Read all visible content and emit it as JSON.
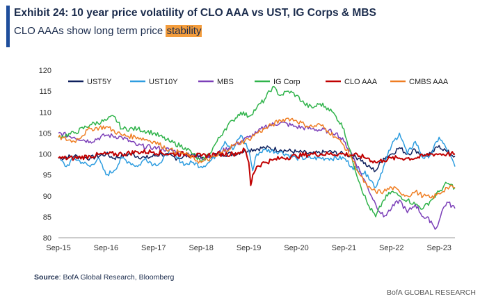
{
  "header": {
    "title": "Exhibit 24: 10 year price volatility of CLO AAA vs UST, IG Corps & MBS",
    "subtitle_prefix": "CLO AAAs show long term price ",
    "subtitle_highlight": "stability"
  },
  "footer": {
    "source_label": "Source",
    "source_text": ": BofA Global Research, Bloomberg",
    "brand": "BofA GLOBAL RESEARCH"
  },
  "colors": {
    "accent": "#1f4e9c",
    "highlight": "#f39c3c",
    "UST5Y": "#0d1f5c",
    "UST10Y": "#2e9de0",
    "MBS": "#7b3fb8",
    "IG Corp": "#2fb34a",
    "CLO AAA": "#c00000",
    "CMBS AAA": "#ef7d22"
  },
  "chart_data": {
    "type": "line",
    "title": "10 year price volatility of CLO AAA vs UST, IG Corps & MBS",
    "xlabel": "",
    "ylabel": "",
    "ylim": [
      80,
      120
    ],
    "yticks": [
      80,
      85,
      90,
      95,
      100,
      105,
      110,
      115,
      120
    ],
    "xlim": [
      0,
      100
    ],
    "xticks": [
      {
        "x": 0,
        "label": "Sep-15"
      },
      {
        "x": 12,
        "label": "Sep-16"
      },
      {
        "x": 24,
        "label": "Sep-17"
      },
      {
        "x": 36,
        "label": "Sep-18"
      },
      {
        "x": 48,
        "label": "Sep-19"
      },
      {
        "x": 60,
        "label": "Sep-20"
      },
      {
        "x": 72,
        "label": "Sep-21"
      },
      {
        "x": 84,
        "label": "Sep-22"
      },
      {
        "x": 96,
        "label": "Sep-23"
      }
    ],
    "legend_position": "top",
    "grid": false,
    "series": [
      {
        "name": "UST5Y",
        "points": [
          [
            0,
            99
          ],
          [
            4,
            99.5
          ],
          [
            8,
            99
          ],
          [
            12,
            100
          ],
          [
            14,
            99
          ],
          [
            18,
            100
          ],
          [
            22,
            99
          ],
          [
            26,
            100
          ],
          [
            30,
            99
          ],
          [
            34,
            100
          ],
          [
            36,
            99
          ],
          [
            40,
            100
          ],
          [
            44,
            100
          ],
          [
            48,
            101
          ],
          [
            52,
            101.5
          ],
          [
            56,
            101
          ],
          [
            60,
            100.5
          ],
          [
            64,
            100
          ],
          [
            68,
            100.5
          ],
          [
            72,
            100
          ],
          [
            76,
            99
          ],
          [
            78,
            97
          ],
          [
            80,
            96
          ],
          [
            82,
            99
          ],
          [
            84,
            100
          ],
          [
            86,
            101.5
          ],
          [
            88,
            100
          ],
          [
            90,
            101
          ],
          [
            92,
            99.5
          ],
          [
            94,
            100
          ],
          [
            96,
            102
          ],
          [
            98,
            100.5
          ],
          [
            100,
            99.5
          ]
        ]
      },
      {
        "name": "UST10Y",
        "points": [
          [
            0,
            99
          ],
          [
            2,
            97
          ],
          [
            4,
            99
          ],
          [
            6,
            98
          ],
          [
            8,
            97
          ],
          [
            10,
            99
          ],
          [
            12,
            95
          ],
          [
            14,
            96
          ],
          [
            16,
            99
          ],
          [
            18,
            98
          ],
          [
            20,
            97
          ],
          [
            22,
            99
          ],
          [
            24,
            97.5
          ],
          [
            26,
            98
          ],
          [
            28,
            101
          ],
          [
            30,
            99
          ],
          [
            32,
            97.5
          ],
          [
            34,
            98
          ],
          [
            36,
            97
          ],
          [
            38,
            98
          ],
          [
            40,
            100
          ],
          [
            42,
            103
          ],
          [
            44,
            101
          ],
          [
            46,
            104.5
          ],
          [
            48,
            101
          ],
          [
            49,
            96
          ],
          [
            50,
            100
          ],
          [
            52,
            101
          ],
          [
            56,
            100.5
          ],
          [
            60,
            99
          ],
          [
            64,
            99
          ],
          [
            68,
            99
          ],
          [
            72,
            99
          ],
          [
            74,
            97
          ],
          [
            76,
            96
          ],
          [
            78,
            95
          ],
          [
            80,
            92
          ],
          [
            82,
            97
          ],
          [
            84,
            102
          ],
          [
            86,
            105
          ],
          [
            88,
            100
          ],
          [
            90,
            103
          ],
          [
            92,
            99
          ],
          [
            94,
            100
          ],
          [
            96,
            104
          ],
          [
            98,
            101
          ],
          [
            100,
            97
          ]
        ]
      },
      {
        "name": "MBS",
        "points": [
          [
            0,
            105
          ],
          [
            4,
            104
          ],
          [
            8,
            103
          ],
          [
            12,
            104.5
          ],
          [
            16,
            104
          ],
          [
            20,
            102
          ],
          [
            24,
            101.5
          ],
          [
            28,
            101
          ],
          [
            32,
            100
          ],
          [
            36,
            99
          ],
          [
            40,
            100
          ],
          [
            44,
            102
          ],
          [
            46,
            103
          ],
          [
            48,
            104
          ],
          [
            50,
            105
          ],
          [
            52,
            106.5
          ],
          [
            56,
            107.5
          ],
          [
            60,
            106.5
          ],
          [
            64,
            106
          ],
          [
            68,
            105.5
          ],
          [
            70,
            105
          ],
          [
            72,
            103
          ],
          [
            74,
            100
          ],
          [
            76,
            96
          ],
          [
            78,
            92
          ],
          [
            80,
            88
          ],
          [
            82,
            85
          ],
          [
            84,
            87
          ],
          [
            86,
            89
          ],
          [
            88,
            86
          ],
          [
            90,
            88
          ],
          [
            92,
            85
          ],
          [
            94,
            84
          ],
          [
            95,
            82
          ],
          [
            96,
            84
          ],
          [
            97,
            87
          ],
          [
            98,
            88.5
          ],
          [
            100,
            87
          ]
        ]
      },
      {
        "name": "IG Corp",
        "points": [
          [
            0,
            104
          ],
          [
            4,
            105
          ],
          [
            8,
            107
          ],
          [
            12,
            108
          ],
          [
            14,
            109
          ],
          [
            16,
            106
          ],
          [
            20,
            106
          ],
          [
            24,
            105
          ],
          [
            28,
            103
          ],
          [
            32,
            101.5
          ],
          [
            34,
            100
          ],
          [
            36,
            98
          ],
          [
            38,
            100
          ],
          [
            40,
            103
          ],
          [
            42,
            106
          ],
          [
            44,
            108
          ],
          [
            46,
            110
          ],
          [
            48,
            109
          ],
          [
            50,
            111
          ],
          [
            52,
            113
          ],
          [
            54,
            116
          ],
          [
            56,
            114
          ],
          [
            58,
            115
          ],
          [
            60,
            114
          ],
          [
            62,
            112
          ],
          [
            64,
            111
          ],
          [
            66,
            112
          ],
          [
            68,
            111
          ],
          [
            70,
            109
          ],
          [
            72,
            106
          ],
          [
            74,
            99
          ],
          [
            76,
            93
          ],
          [
            78,
            88
          ],
          [
            80,
            85
          ],
          [
            82,
            89
          ],
          [
            84,
            91
          ],
          [
            86,
            90
          ],
          [
            88,
            89
          ],
          [
            90,
            88
          ],
          [
            92,
            87
          ],
          [
            94,
            89
          ],
          [
            96,
            91
          ],
          [
            98,
            93
          ],
          [
            100,
            92
          ]
        ]
      },
      {
        "name": "CLO AAA",
        "points": [
          [
            0,
            99
          ],
          [
            4,
            99
          ],
          [
            8,
            99.5
          ],
          [
            12,
            100
          ],
          [
            16,
            100
          ],
          [
            20,
            100.5
          ],
          [
            24,
            100.5
          ],
          [
            28,
            100
          ],
          [
            32,
            100
          ],
          [
            36,
            99.5
          ],
          [
            40,
            100
          ],
          [
            44,
            100
          ],
          [
            46,
            100.5
          ],
          [
            47,
            101
          ],
          [
            48,
            98
          ],
          [
            48.5,
            92.5
          ],
          [
            49,
            95
          ],
          [
            50,
            97
          ],
          [
            52,
            98
          ],
          [
            54,
            98.5
          ],
          [
            56,
            99
          ],
          [
            60,
            99.5
          ],
          [
            64,
            100
          ],
          [
            68,
            100
          ],
          [
            72,
            100
          ],
          [
            76,
            99.5
          ],
          [
            78,
            99
          ],
          [
            80,
            98
          ],
          [
            82,
            98.5
          ],
          [
            84,
            99
          ],
          [
            86,
            99
          ],
          [
            88,
            99
          ],
          [
            90,
            99
          ],
          [
            92,
            99.5
          ],
          [
            94,
            100
          ],
          [
            96,
            100
          ],
          [
            98,
            100
          ],
          [
            100,
            100
          ]
        ]
      },
      {
        "name": "CMBS AAA",
        "points": [
          [
            0,
            104
          ],
          [
            4,
            103
          ],
          [
            8,
            106
          ],
          [
            12,
            106.5
          ],
          [
            16,
            104.5
          ],
          [
            20,
            104
          ],
          [
            24,
            103
          ],
          [
            28,
            101
          ],
          [
            32,
            100
          ],
          [
            36,
            98
          ],
          [
            40,
            99.5
          ],
          [
            44,
            102
          ],
          [
            48,
            103.5
          ],
          [
            50,
            105
          ],
          [
            52,
            106
          ],
          [
            54,
            107
          ],
          [
            56,
            108
          ],
          [
            58,
            108.5
          ],
          [
            60,
            108
          ],
          [
            62,
            107
          ],
          [
            64,
            106.5
          ],
          [
            66,
            107
          ],
          [
            68,
            105.5
          ],
          [
            70,
            104
          ],
          [
            72,
            102
          ],
          [
            74,
            99
          ],
          [
            76,
            95
          ],
          [
            78,
            92
          ],
          [
            80,
            91
          ],
          [
            82,
            91
          ],
          [
            84,
            92
          ],
          [
            86,
            91
          ],
          [
            88,
            90
          ],
          [
            90,
            91
          ],
          [
            92,
            90
          ],
          [
            94,
            89.5
          ],
          [
            96,
            90.5
          ],
          [
            98,
            92
          ],
          [
            100,
            92
          ]
        ]
      }
    ]
  }
}
